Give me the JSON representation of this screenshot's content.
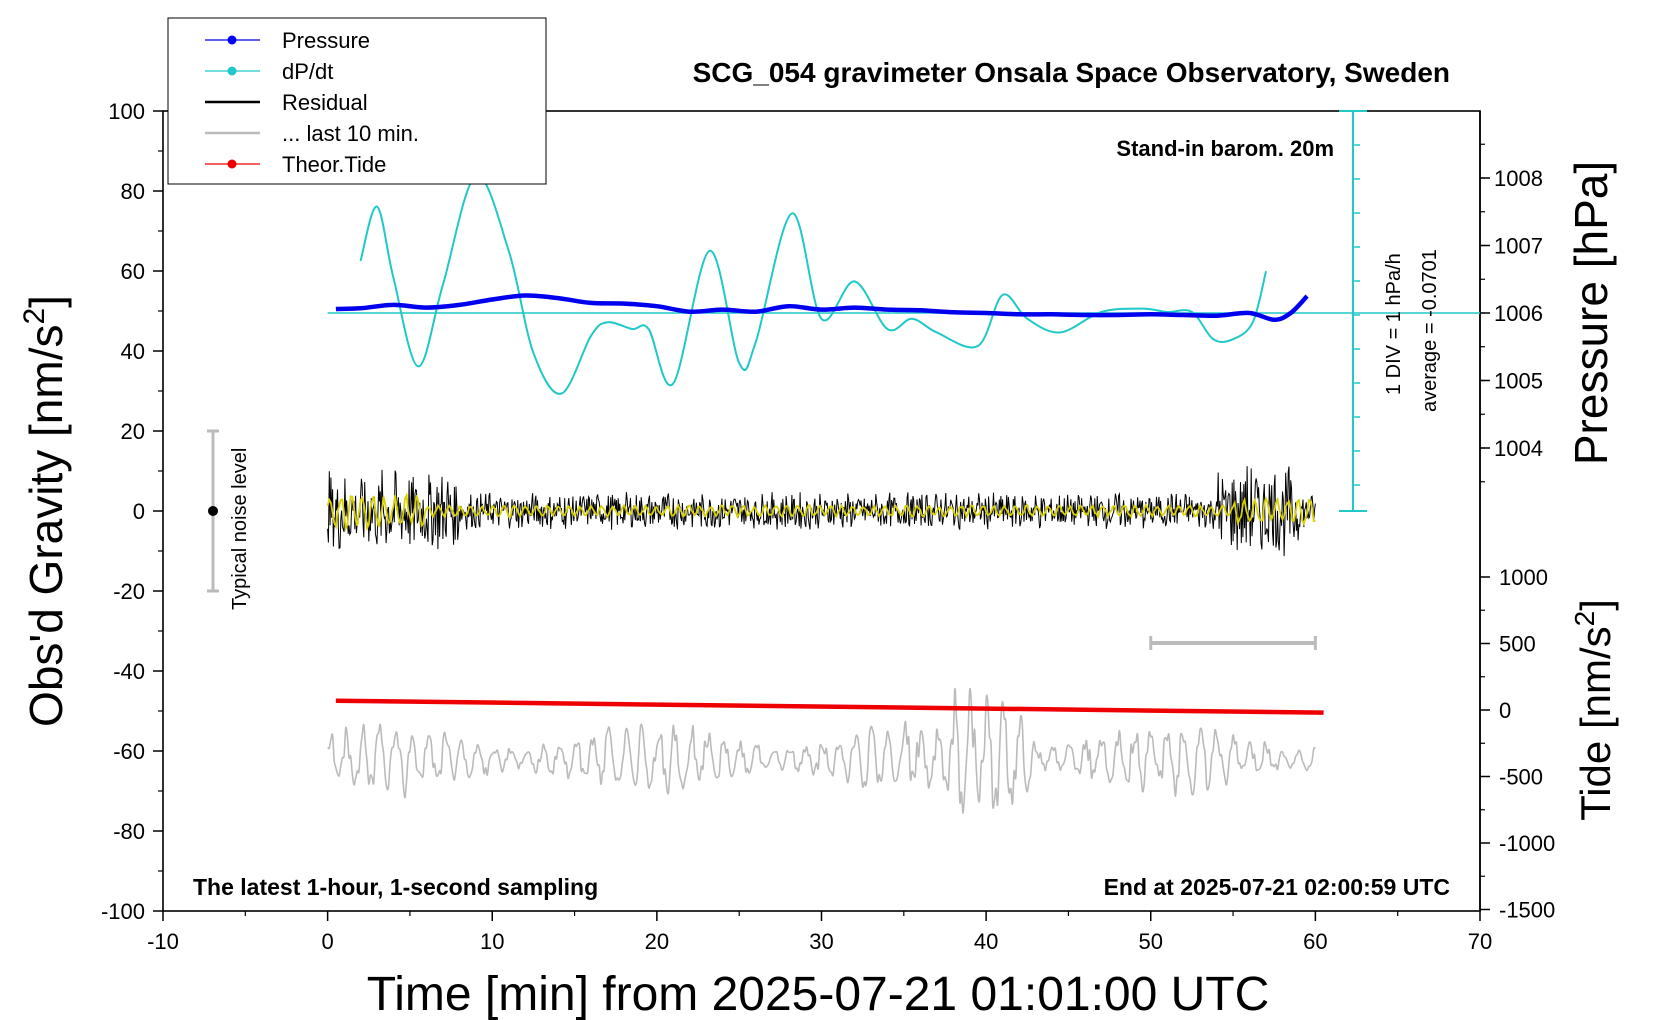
{
  "chart_data": {
    "type": "line",
    "title": "SCG_054 gravimeter Onsala Space Observatory, Sweden",
    "xlabel": "Time [min] from 2025-07-21 01:01:00 UTC",
    "ylabel_left": "Obs'd Gravity [nm/s",
    "ylabel_left_sup": "2",
    "ylabel_left_end": "]",
    "ylabel_pressure": "Pressure [hPa]",
    "ylabel_tide": "Tide [nm/s",
    "ylabel_tide_sup": "2",
    "ylabel_tide_end": "]",
    "xlim": [
      -10,
      70
    ],
    "ylim": [
      -100,
      100
    ],
    "x_ticks": [
      "-10",
      "0",
      "10",
      "20",
      "30",
      "40",
      "50",
      "60",
      "70"
    ],
    "y_ticks": [
      "100",
      "80",
      "60",
      "40",
      "20",
      "0",
      "-20",
      "-40",
      "-60",
      "-80",
      "-100"
    ],
    "pressure_ticks": [
      "1008",
      "1007",
      "1006",
      "1005",
      "1004"
    ],
    "tide_ticks": [
      "1000",
      "500",
      "0",
      "-500",
      "-1000",
      "-1500"
    ],
    "annotations": {
      "barometer": "Stand-in barom. 20m",
      "latest": "The latest 1-hour, 1-second sampling",
      "end": "End at 2025-07-21 02:00:59 UTC",
      "noise": "Typical noise level",
      "div": "1 DIV = 1 hPa/h",
      "average": "average = -0.0701"
    },
    "legend": {
      "position": "top-left",
      "entries": [
        {
          "label": "Pressure",
          "color": "#0000ee",
          "marker": true
        },
        {
          "label": "dP/dt",
          "color": "#20c8c8",
          "marker": true
        },
        {
          "label": "Residual",
          "color": "#000000",
          "marker": false
        },
        {
          "label": "... last 10 min.",
          "color": "#bbbbbb",
          "marker": false
        },
        {
          "label": "Theor.Tide",
          "color": "#ee0000",
          "marker": true
        }
      ]
    },
    "series": [
      {
        "name": "Pressure",
        "color": "#0000ee",
        "unit": "hPa",
        "x": [
          0.5,
          2,
          4,
          6,
          8,
          10,
          12,
          14,
          16,
          18,
          20,
          22,
          24,
          26,
          28,
          30,
          32,
          34,
          36,
          38,
          40,
          42,
          44,
          46,
          48,
          50,
          52,
          54,
          56,
          57.5,
          58.5,
          59.5
        ],
        "y": [
          1006.06,
          1006.07,
          1006.12,
          1006.08,
          1006.12,
          1006.2,
          1006.26,
          1006.22,
          1006.15,
          1006.14,
          1006.1,
          1006.02,
          1006.05,
          1006.02,
          1006.1,
          1006.05,
          1006.08,
          1006.05,
          1006.04,
          1006.01,
          1006.0,
          1005.98,
          1005.98,
          1005.97,
          1005.97,
          1005.98,
          1005.97,
          1005.96,
          1006.0,
          1005.9,
          1006.0,
          1006.25
        ]
      },
      {
        "name": "dP/dt",
        "color": "#20c8c8",
        "unit": "hPa/h",
        "x": [
          2,
          3,
          4,
          5.5,
          7,
          9,
          11,
          12.5,
          14.2,
          16,
          17,
          18.5,
          19.5,
          21,
          23.2,
          25,
          26,
          28.2,
          30,
          32,
          34,
          35.5,
          37,
          39.5,
          41,
          42.5,
          44.5,
          47,
          49.5,
          51,
          52.5,
          53.8,
          55,
          56.2,
          57
        ],
        "y": [
          1.5,
          3.1,
          1.0,
          -1.6,
          0.8,
          4.0,
          1.8,
          -1.2,
          -2.4,
          -0.7,
          -0.3,
          -0.5,
          -0.5,
          -2.1,
          1.8,
          -1.5,
          -0.9,
          2.9,
          -0.2,
          0.9,
          -0.5,
          -0.2,
          -0.6,
          -1.0,
          0.5,
          -0.2,
          -0.6,
          0.0,
          0.1,
          0.0,
          0.0,
          -0.8,
          -0.8,
          -0.3,
          1.2
        ]
      },
      {
        "name": "Residual",
        "color": "#000000",
        "unit": "nm/s^2",
        "x": [
          0,
          60
        ],
        "y_range": [
          -13,
          13
        ]
      },
      {
        "name": "Theor.Tide",
        "color": "#ee0000",
        "unit": "nm/s^2",
        "x": [
          0.5,
          60.5
        ],
        "y": [
          70,
          -20
        ]
      },
      {
        "name": "... last 10 min.",
        "color": "#bbbbbb",
        "x": [
          0,
          60
        ]
      }
    ],
    "dpdt_reference_y": 1006.0,
    "scale_bar_x": [
      50,
      60
    ],
    "noise_level": [
      -20,
      20
    ]
  }
}
